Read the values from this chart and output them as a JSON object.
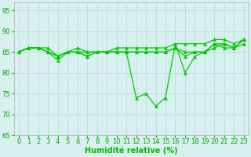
{
  "series": [
    [
      85,
      86,
      86,
      85,
      83,
      85,
      85,
      84,
      85,
      85,
      85,
      85,
      74,
      75,
      72,
      74,
      87,
      80,
      84,
      85,
      87,
      87,
      86,
      88
    ],
    [
      85,
      86,
      86,
      86,
      84,
      85,
      86,
      85,
      85,
      85,
      86,
      86,
      86,
      86,
      86,
      86,
      87,
      87,
      87,
      87,
      88,
      88,
      87,
      88
    ],
    [
      85,
      86,
      86,
      85,
      84,
      85,
      85,
      85,
      85,
      85,
      85,
      85,
      85,
      85,
      85,
      85,
      86,
      84,
      85,
      85,
      86,
      87,
      86,
      87
    ],
    [
      85,
      86,
      86,
      85,
      84,
      85,
      85,
      84,
      85,
      85,
      85,
      85,
      85,
      85,
      85,
      85,
      86,
      85,
      85,
      85,
      87,
      86,
      86,
      88
    ]
  ],
  "x": [
    0,
    1,
    2,
    3,
    4,
    5,
    6,
    7,
    8,
    9,
    10,
    11,
    12,
    13,
    14,
    15,
    16,
    17,
    18,
    19,
    20,
    21,
    22,
    23
  ],
  "line_color": "#00cc00",
  "marker_color": "#00cc00",
  "bg_color": "#d8f0f0",
  "grid_color": "#b8ddd8",
  "xlabel": "Humidité relative (%)",
  "xlabel_color": "#00bb00",
  "ylim": [
    65,
    97
  ],
  "yticks": [
    65,
    70,
    75,
    80,
    85,
    90,
    95
  ],
  "xticks": [
    0,
    1,
    2,
    3,
    4,
    5,
    6,
    7,
    8,
    9,
    10,
    11,
    12,
    13,
    14,
    15,
    16,
    17,
    18,
    19,
    20,
    21,
    22,
    23
  ],
  "tick_label_color": "#00aa00",
  "font_size_axis": 6,
  "font_size_xlabel": 7,
  "line_width": 0.9,
  "marker_size": 3
}
